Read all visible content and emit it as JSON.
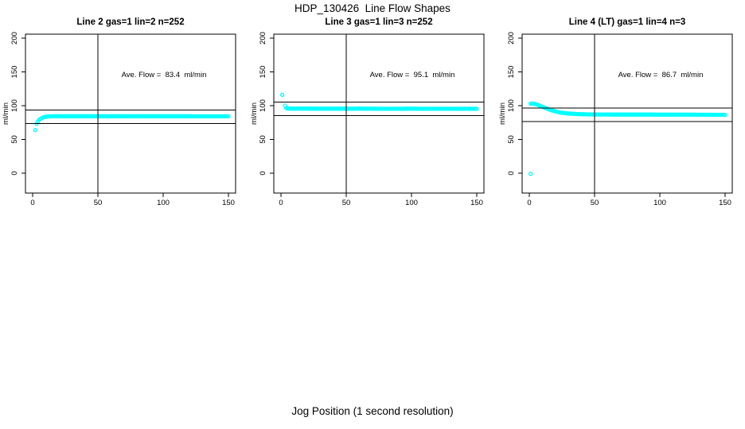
{
  "figure": {
    "title": "HDP_130426  Line Flow Shapes",
    "xlabel": "Jog Position (1 second resolution)",
    "background": "#ffffff",
    "axis_color": "#000000"
  },
  "chart_data": [
    {
      "type": "scatter",
      "title": "Line 2 gas=1 lin=2 n=252",
      "ylabel": "ml/min",
      "n": 252,
      "ave_flow": 83.4,
      "annotation": "Ave. Flow =  83.4  ml/min",
      "xlim": [
        0,
        150
      ],
      "ylim": [
        0,
        200
      ],
      "xticks": [
        0,
        50,
        100,
        150
      ],
      "yticks": [
        0,
        50,
        100,
        150,
        200
      ],
      "vline_x": 50,
      "hlines": [
        93.4,
        73.4
      ],
      "point_color": "#00ffff",
      "outlier_points": [
        [
          2,
          64
        ]
      ],
      "trend_points": [
        [
          3,
          73
        ],
        [
          4,
          76.5
        ],
        [
          5,
          79
        ],
        [
          6,
          80.5
        ],
        [
          7,
          81.5
        ],
        [
          8,
          82.5
        ],
        [
          9,
          83
        ],
        [
          10,
          83.5
        ],
        [
          12,
          84
        ],
        [
          15,
          84.3
        ],
        [
          30,
          84.4
        ],
        [
          60,
          84.3
        ],
        [
          90,
          84.4
        ],
        [
          120,
          84.3
        ],
        [
          150,
          84.2
        ]
      ]
    },
    {
      "type": "scatter",
      "title": "Line 3 gas=1 lin=3 n=252",
      "ylabel": "ml/min",
      "n": 252,
      "ave_flow": 95.1,
      "annotation": "Ave. Flow =  95.1  ml/min",
      "xlim": [
        0,
        150
      ],
      "ylim": [
        0,
        200
      ],
      "xticks": [
        0,
        50,
        100,
        150
      ],
      "yticks": [
        0,
        50,
        100,
        150,
        200
      ],
      "vline_x": 50,
      "hlines": [
        105.1,
        85.1
      ],
      "point_color": "#00ffff",
      "outlier_points": [
        [
          1,
          116
        ]
      ],
      "trend_points": [
        [
          3,
          100
        ],
        [
          4,
          96.5
        ],
        [
          5,
          95.8
        ],
        [
          8,
          95.6
        ],
        [
          20,
          95.6
        ],
        [
          40,
          95.5
        ],
        [
          60,
          95.6
        ],
        [
          80,
          95.4
        ],
        [
          100,
          95.5
        ],
        [
          120,
          95.4
        ],
        [
          150,
          95.4
        ]
      ]
    },
    {
      "type": "scatter",
      "title": "Line 4 (LT) gas=1 lin=4 n=3",
      "ylabel": "ml/min",
      "n": 3,
      "ave_flow": 86.7,
      "annotation": "Ave. Flow =  86.7  ml/min",
      "xlim": [
        0,
        150
      ],
      "ylim": [
        0,
        200
      ],
      "xticks": [
        0,
        50,
        100,
        150
      ],
      "yticks": [
        0,
        50,
        100,
        150,
        200
      ],
      "vline_x": 50,
      "hlines": [
        96.7,
        76.7
      ],
      "point_color": "#00ffff",
      "outlier_points": [
        [
          1,
          -1
        ]
      ],
      "trend_points": [
        [
          1,
          103
        ],
        [
          3,
          103
        ],
        [
          5,
          102.3
        ],
        [
          7,
          100.8
        ],
        [
          9,
          99.2
        ],
        [
          11,
          97.6
        ],
        [
          13,
          96
        ],
        [
          15,
          94.5
        ],
        [
          17,
          93.2
        ],
        [
          19,
          92
        ],
        [
          21,
          91
        ],
        [
          23,
          90.2
        ],
        [
          25,
          89.5
        ],
        [
          27,
          89
        ],
        [
          30,
          88.4
        ],
        [
          34,
          87.9
        ],
        [
          38,
          87.5
        ],
        [
          43,
          87.2
        ],
        [
          50,
          87
        ],
        [
          60,
          86.9
        ],
        [
          75,
          86.8
        ],
        [
          90,
          86.8
        ],
        [
          105,
          86.7
        ],
        [
          120,
          86.7
        ],
        [
          135,
          86.6
        ],
        [
          150,
          86.4
        ]
      ]
    }
  ]
}
